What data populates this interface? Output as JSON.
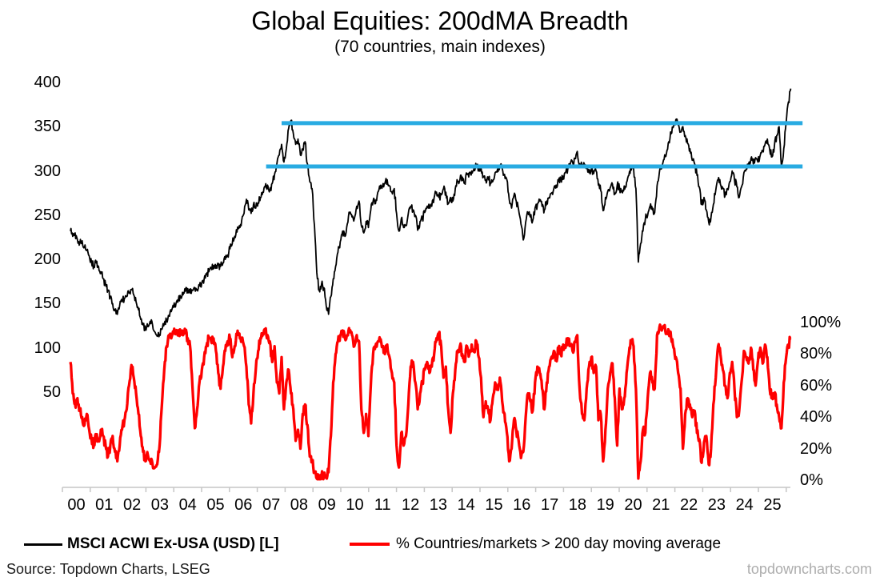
{
  "chart": {
    "title": "Global Equities: 200dMA Breadth",
    "subtitle": "(70 countries, main indexes)"
  },
  "legend": {
    "items": [
      {
        "label": "MSCI ACWI Ex-USA (USD) [L]",
        "color": "#000000",
        "bold": true
      },
      {
        "label": "% Countries/markets > 200 day moving average",
        "color": "#FF0000",
        "bold": false
      }
    ]
  },
  "footer": {
    "source": "Source: Topdown Charts, LSEG",
    "watermark": "topdowncharts.com"
  },
  "chart_data": {
    "type": "line",
    "title": "Global Equities: 200dMA Breadth",
    "subtitle": "(70 countries, main indexes)",
    "grid": false,
    "legend_position": "bottom",
    "x_axis": {
      "labels": [
        "00",
        "01",
        "02",
        "03",
        "04",
        "05",
        "06",
        "07",
        "08",
        "09",
        "10",
        "11",
        "12",
        "13",
        "14",
        "15",
        "16",
        "17",
        "18",
        "19",
        "20",
        "21",
        "22",
        "23",
        "24",
        "25"
      ],
      "start_year": 2000,
      "end_year_fraction": 2025.6
    },
    "left_axis": {
      "tick_labels": [
        "400",
        "350",
        "300",
        "250",
        "200",
        "150",
        "100",
        "50"
      ],
      "tick_values": [
        400,
        350,
        300,
        250,
        200,
        150,
        100,
        50
      ],
      "applies_to": "MSCI ACWI Ex-USA (USD) [L]"
    },
    "right_axis": {
      "tick_labels": [
        "100%",
        "80%",
        "60%",
        "40%",
        "20%",
        "0%"
      ],
      "tick_values": [
        100,
        80,
        60,
        40,
        20,
        0
      ],
      "applies_to": "% Countries/markets > 200 day moving average"
    },
    "reference_lines": [
      {
        "name": "resistance-upper",
        "axis": "left",
        "value": 354,
        "start_year_offset": 7.5,
        "end_year_offset": 26.0,
        "color": "#29ABE2"
      },
      {
        "name": "resistance-lower",
        "axis": "left",
        "value": 305,
        "start_year_offset": 6.95,
        "end_year_offset": 26.0,
        "color": "#29ABE2"
      }
    ],
    "series": [
      {
        "name": "MSCI ACWI Ex-USA (USD) [L]",
        "axis": "left",
        "color": "#000000",
        "frequency": "monthly",
        "start": "2000-01",
        "values": [
          232,
          226,
          230,
          222,
          218,
          221,
          214,
          210,
          204,
          197,
          192,
          196,
          192,
          186,
          178,
          172,
          165,
          158,
          150,
          142,
          138,
          148,
          152,
          156,
          158,
          162,
          166,
          160,
          152,
          143,
          132,
          126,
          120,
          124,
          130,
          126,
          118,
          113,
          115,
          121,
          127,
          131,
          136,
          141,
          146,
          150,
          154,
          157,
          160,
          164,
          167,
          162,
          165,
          168,
          166,
          170,
          174,
          178,
          183,
          186,
          190,
          193,
          190,
          194,
          192,
          196,
          200,
          205,
          212,
          218,
          226,
          231,
          238,
          244,
          252,
          268,
          256,
          252,
          262,
          258,
          264,
          270,
          276,
          282,
          284,
          278,
          286,
          296,
          308,
          318,
          330,
          310,
          325,
          348,
          357,
          342,
          330,
          336,
          318,
          325,
          333,
          308,
          288,
          280,
          238,
          185,
          165,
          172,
          168,
          148,
          138,
          158,
          178,
          192,
          208,
          220,
          232,
          226,
          240,
          252,
          248,
          246,
          260,
          266,
          238,
          230,
          243,
          236,
          256,
          266,
          263,
          276,
          280,
          283,
          286,
          290,
          283,
          276,
          280,
          252,
          232,
          246,
          236,
          238,
          252,
          260,
          256,
          250,
          233,
          243,
          246,
          253,
          260,
          258,
          260,
          270,
          276,
          270,
          273,
          280,
          276,
          263,
          270,
          266,
          280,
          288,
          290,
          293,
          286,
          296,
          298,
          300,
          303,
          306,
          300,
          304,
          293,
          290,
          293,
          286,
          288,
          298,
          302,
          306,
          303,
          296,
          290,
          268,
          258,
          272,
          266,
          256,
          240,
          222,
          242,
          252,
          248,
          244,
          258,
          262,
          266,
          260,
          256,
          266,
          270,
          275,
          280,
          284,
          288,
          291,
          294,
          298,
          303,
          308,
          310,
          314,
          322,
          308,
          305,
          308,
          304,
          298,
          302,
          297,
          300,
          284,
          278,
          255,
          270,
          277,
          281,
          285,
          275,
          284,
          281,
          276,
          283,
          287,
          295,
          301,
          303,
          280,
          197,
          218,
          232,
          246,
          250,
          260,
          256,
          253,
          283,
          299,
          303,
          313,
          320,
          333,
          342,
          350,
          358,
          352,
          344,
          350,
          340,
          331,
          325,
          312,
          308,
          295,
          282,
          262,
          270,
          256,
          242,
          248,
          262,
          278,
          290,
          285,
          280,
          272,
          280,
          288,
          300,
          290,
          282,
          270,
          282,
          298,
          302,
          308,
          314,
          308,
          315,
          310,
          318,
          323,
          330,
          336,
          324,
          316,
          328,
          340,
          350,
          305,
          325,
          355,
          378,
          393
        ]
      },
      {
        "name": "% Countries/markets > 200 day moving average",
        "axis": "right",
        "unit": "%",
        "color": "#FF0000",
        "frequency": "monthly",
        "start": "2000-01",
        "values": [
          75,
          55,
          48,
          52,
          44,
          40,
          35,
          42,
          32,
          26,
          22,
          28,
          25,
          32,
          28,
          22,
          15,
          22,
          28,
          18,
          12,
          22,
          32,
          38,
          45,
          60,
          73,
          65,
          55,
          42,
          28,
          18,
          12,
          16,
          12,
          10,
          8,
          10,
          22,
          48,
          70,
          85,
          92,
          90,
          93,
          95,
          92,
          94,
          92,
          94,
          90,
          85,
          60,
          33,
          45,
          62,
          70,
          78,
          85,
          90,
          88,
          90,
          82,
          68,
          58,
          72,
          82,
          88,
          90,
          78,
          85,
          92,
          93,
          90,
          85,
          72,
          48,
          36,
          55,
          70,
          82,
          90,
          93,
          95,
          92,
          88,
          75,
          85,
          62,
          55,
          78,
          45,
          62,
          70,
          55,
          45,
          25,
          32,
          20,
          42,
          48,
          35,
          15,
          12,
          5,
          1,
          2,
          3,
          2,
          2,
          5,
          28,
          62,
          80,
          88,
          92,
          95,
          90,
          92,
          94,
          92,
          85,
          92,
          88,
          45,
          30,
          42,
          28,
          60,
          80,
          85,
          88,
          88,
          85,
          80,
          86,
          78,
          68,
          62,
          22,
          8,
          30,
          22,
          28,
          48,
          72,
          75,
          62,
          45,
          55,
          62,
          70,
          75,
          68,
          72,
          80,
          90,
          93,
          85,
          65,
          72,
          45,
          30,
          55,
          70,
          82,
          85,
          80,
          75,
          85,
          80,
          86,
          82,
          88,
          78,
          65,
          40,
          50,
          45,
          38,
          52,
          62,
          58,
          65,
          50,
          42,
          30,
          12,
          20,
          38,
          32,
          25,
          14,
          18,
          40,
          55,
          50,
          44,
          62,
          72,
          68,
          58,
          45,
          62,
          72,
          78,
          82,
          76,
          84,
          80,
          86,
          84,
          90,
          86,
          82,
          88,
          92,
          58,
          42,
          38,
          58,
          72,
          78,
          68,
          72,
          38,
          42,
          12,
          32,
          58,
          68,
          74,
          52,
          22,
          58,
          45,
          52,
          68,
          80,
          88,
          85,
          58,
          1,
          12,
          32,
          30,
          52,
          68,
          62,
          58,
          92,
          97,
          95,
          97,
          93,
          95,
          90,
          84,
          78,
          68,
          58,
          20,
          42,
          52,
          48,
          40,
          44,
          30,
          26,
          11,
          24,
          28,
          10,
          20,
          48,
          65,
          85,
          80,
          70,
          60,
          52,
          68,
          75,
          58,
          40,
          44,
          62,
          82,
          78,
          74,
          84,
          70,
          60,
          76,
          84,
          74,
          86,
          78,
          58,
          52,
          55,
          48,
          40,
          33,
          62,
          78,
          86,
          90
        ]
      }
    ],
    "colors": {
      "series_black": "#000000",
      "series_red": "#FF0000",
      "reference_blue": "#29ABE2",
      "axis_gray": "#C6C6C6",
      "watermark_gray": "#ADADAD"
    }
  }
}
